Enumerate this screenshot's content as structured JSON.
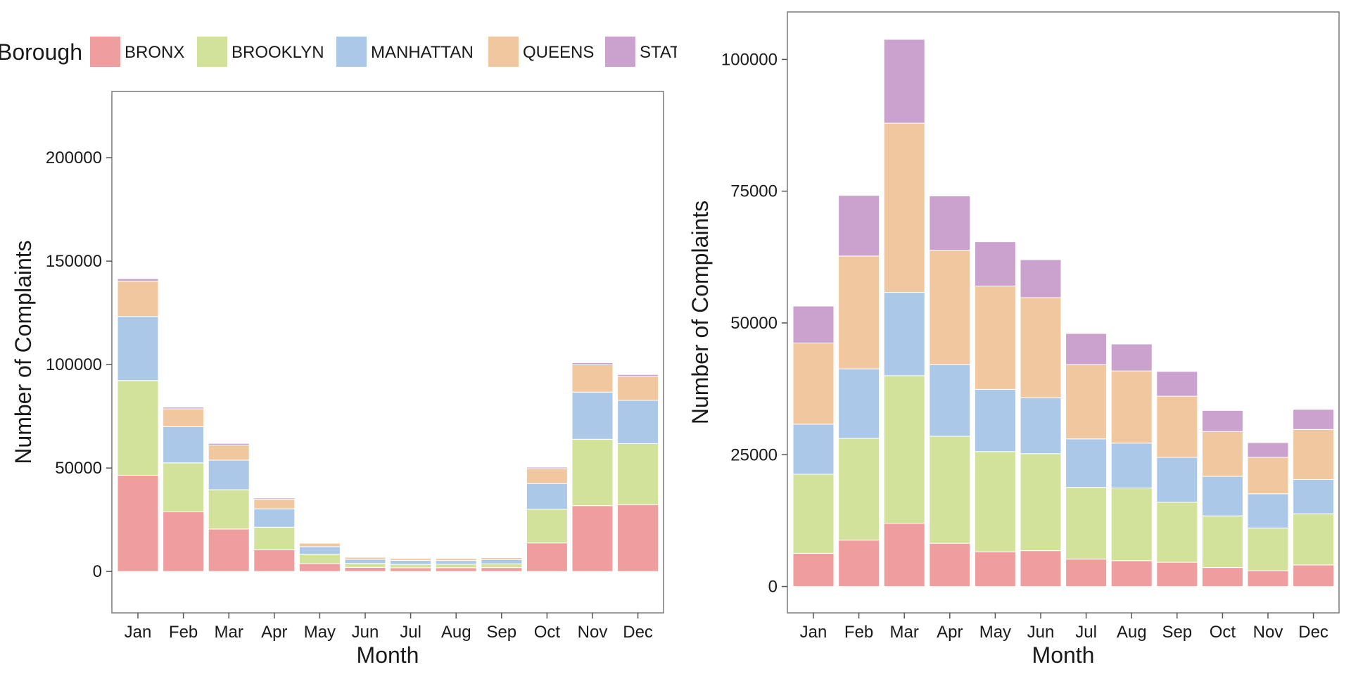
{
  "legend": {
    "title": "Borough",
    "entries": [
      {
        "label": "BRONX",
        "color": "#EF9E9F"
      },
      {
        "label": "BROOKLYN",
        "color": "#D3E29B"
      },
      {
        "label": "MANHATTAN",
        "color": "#ACC8E8"
      },
      {
        "label": "QUEENS",
        "color": "#F1C79F"
      },
      {
        "label": "STATEN ISLAND",
        "color": "#CBA1CD"
      }
    ],
    "position": "top",
    "visible_label_suffix": "STA"
  },
  "chart_data": [
    {
      "type": "bar",
      "stacked": true,
      "xlabel": "Month",
      "ylabel": "Number of Complaints",
      "categories": [
        "Jan",
        "Feb",
        "Mar",
        "Apr",
        "May",
        "Jun",
        "Jul",
        "Aug",
        "Sep",
        "Oct",
        "Nov",
        "Dec"
      ],
      "ylim": [
        -20000,
        232000
      ],
      "yticks": [
        0,
        50000,
        100000,
        150000,
        200000
      ],
      "ytick_labels": [
        "0",
        "50000",
        "100000",
        "150000",
        "200000"
      ],
      "grid": false,
      "series": [
        {
          "name": "BRONX",
          "values": [
            46500,
            28800,
            20500,
            10500,
            3800,
            2000,
            1800,
            1800,
            1900,
            13800,
            31800,
            32300
          ]
        },
        {
          "name": "BROOKLYN",
          "values": [
            45800,
            23700,
            19000,
            10900,
            4500,
            1900,
            1600,
            1700,
            1800,
            16300,
            32100,
            29500
          ]
        },
        {
          "name": "MANHATTAN",
          "values": [
            31000,
            17500,
            14300,
            8900,
            3700,
            2000,
            2000,
            1800,
            2000,
            12400,
            22800,
            20900
          ]
        },
        {
          "name": "QUEENS",
          "values": [
            17000,
            8600,
            7300,
            4600,
            1700,
            1000,
            1000,
            1000,
            1000,
            7200,
            13200,
            11600
          ]
        },
        {
          "name": "STATEN ISLAND",
          "values": [
            1200,
            800,
            800,
            600,
            300,
            150,
            150,
            150,
            150,
            700,
            1000,
            900
          ]
        }
      ]
    },
    {
      "type": "bar",
      "stacked": true,
      "xlabel": "Month",
      "ylabel": "Number of Complaints",
      "categories": [
        "Jan",
        "Feb",
        "Mar",
        "Apr",
        "May",
        "Jun",
        "Jul",
        "Aug",
        "Sep",
        "Oct",
        "Nov",
        "Dec"
      ],
      "ylim": [
        -5000,
        109000
      ],
      "yticks": [
        0,
        25000,
        50000,
        75000,
        100000
      ],
      "ytick_labels": [
        "0",
        "25000",
        "50000",
        "75000",
        "100000"
      ],
      "grid": false,
      "series": [
        {
          "name": "BRONX",
          "values": [
            6300,
            8800,
            12000,
            8200,
            6600,
            6800,
            5200,
            4900,
            4600,
            3600,
            3000,
            4100
          ]
        },
        {
          "name": "BROOKLYN",
          "values": [
            15000,
            19300,
            28000,
            20300,
            19000,
            18400,
            13600,
            13800,
            11400,
            9800,
            8100,
            9700
          ]
        },
        {
          "name": "MANHATTAN",
          "values": [
            9500,
            13200,
            15800,
            13600,
            11800,
            10600,
            9200,
            8500,
            8500,
            7500,
            6500,
            6500
          ]
        },
        {
          "name": "QUEENS",
          "values": [
            15400,
            21400,
            32100,
            21700,
            19600,
            19000,
            14100,
            13700,
            11600,
            8500,
            6900,
            9500
          ]
        },
        {
          "name": "STATEN ISLAND",
          "values": [
            7000,
            11500,
            15900,
            10300,
            8400,
            7200,
            5900,
            5100,
            4700,
            4000,
            2800,
            3800
          ]
        }
      ]
    }
  ]
}
